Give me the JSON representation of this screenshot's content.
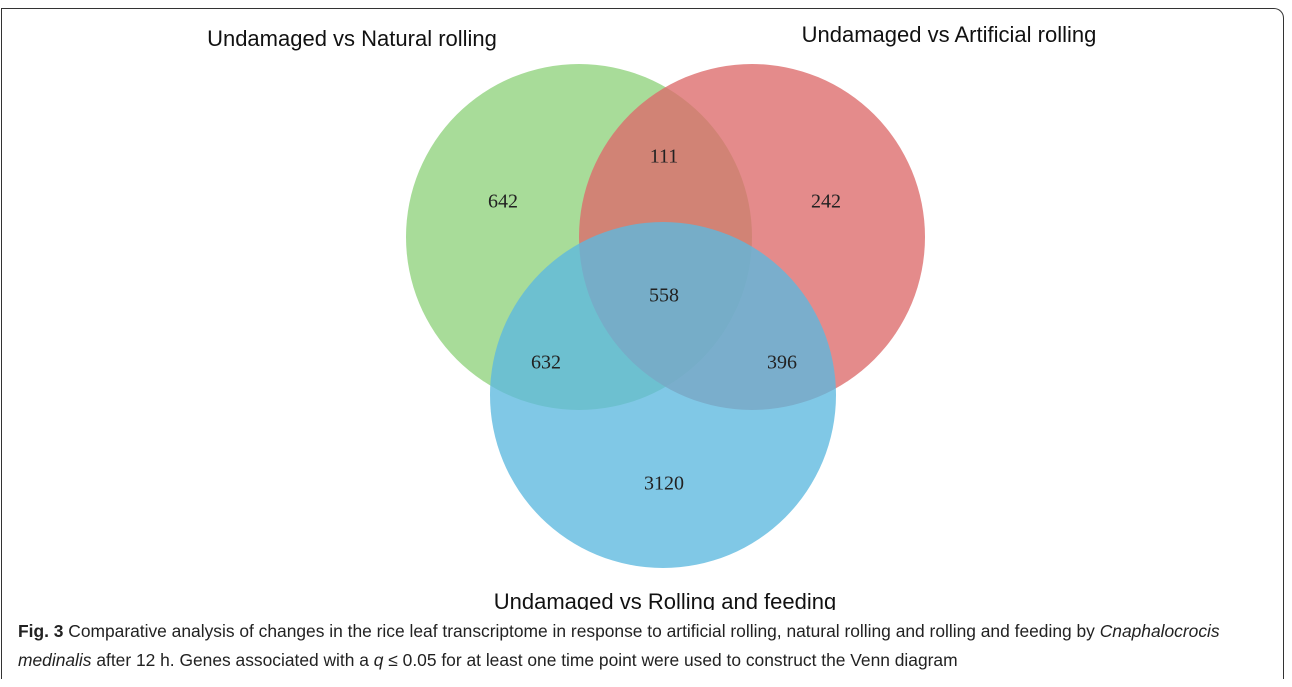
{
  "chart_data": {
    "type": "venn",
    "sets": [
      {
        "name": "Undamaged vs Natural rolling",
        "color": "#8fd27c"
      },
      {
        "name": "Undamaged vs Artificial rolling",
        "color": "#dc6a6a"
      },
      {
        "name": "Undamaged vs Rolling and feeding",
        "color": "#5cb9df"
      }
    ],
    "regions": [
      {
        "sets": [
          0
        ],
        "value": 642
      },
      {
        "sets": [
          1
        ],
        "value": 242
      },
      {
        "sets": [
          2
        ],
        "value": 3120
      },
      {
        "sets": [
          0,
          1
        ],
        "value": 111
      },
      {
        "sets": [
          0,
          2
        ],
        "value": 632
      },
      {
        "sets": [
          1,
          2
        ],
        "value": 396
      },
      {
        "sets": [
          0,
          1,
          2
        ],
        "value": 558
      }
    ]
  },
  "caption": {
    "label": "Fig. 3",
    "text_1": "Comparative analysis of changes in the rice leaf transcriptome in response to artificial rolling, natural rolling and rolling and feeding by",
    "species": "Cnaphalocrocis medinalis",
    "text_2": "after 12 h. Genes associated with a",
    "q": "q",
    "text_3": "≤ 0.05 for at least one time point were used to construct the Venn diagram"
  }
}
